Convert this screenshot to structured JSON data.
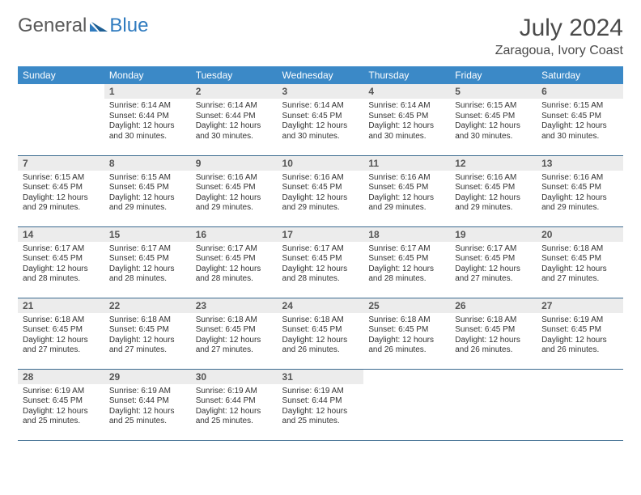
{
  "brand": {
    "general": "General",
    "blue": "Blue"
  },
  "header": {
    "title": "July 2024",
    "location": "Zaragoua, Ivory Coast"
  },
  "colors": {
    "header_bg": "#3b89c7",
    "header_text": "#ffffff",
    "daynum_bg": "#ececec",
    "row_border": "#3b6a8f",
    "brand_blue": "#2f7bbf",
    "brand_grey": "#5a5a5a"
  },
  "weekdays": [
    "Sunday",
    "Monday",
    "Tuesday",
    "Wednesday",
    "Thursday",
    "Friday",
    "Saturday"
  ],
  "grid": {
    "columns": 7,
    "start_offset": 1,
    "days": [
      {
        "n": 1,
        "sunrise": "6:14 AM",
        "sunset": "6:44 PM",
        "daylight": "12 hours and 30 minutes."
      },
      {
        "n": 2,
        "sunrise": "6:14 AM",
        "sunset": "6:44 PM",
        "daylight": "12 hours and 30 minutes."
      },
      {
        "n": 3,
        "sunrise": "6:14 AM",
        "sunset": "6:45 PM",
        "daylight": "12 hours and 30 minutes."
      },
      {
        "n": 4,
        "sunrise": "6:14 AM",
        "sunset": "6:45 PM",
        "daylight": "12 hours and 30 minutes."
      },
      {
        "n": 5,
        "sunrise": "6:15 AM",
        "sunset": "6:45 PM",
        "daylight": "12 hours and 30 minutes."
      },
      {
        "n": 6,
        "sunrise": "6:15 AM",
        "sunset": "6:45 PM",
        "daylight": "12 hours and 30 minutes."
      },
      {
        "n": 7,
        "sunrise": "6:15 AM",
        "sunset": "6:45 PM",
        "daylight": "12 hours and 29 minutes."
      },
      {
        "n": 8,
        "sunrise": "6:15 AM",
        "sunset": "6:45 PM",
        "daylight": "12 hours and 29 minutes."
      },
      {
        "n": 9,
        "sunrise": "6:16 AM",
        "sunset": "6:45 PM",
        "daylight": "12 hours and 29 minutes."
      },
      {
        "n": 10,
        "sunrise": "6:16 AM",
        "sunset": "6:45 PM",
        "daylight": "12 hours and 29 minutes."
      },
      {
        "n": 11,
        "sunrise": "6:16 AM",
        "sunset": "6:45 PM",
        "daylight": "12 hours and 29 minutes."
      },
      {
        "n": 12,
        "sunrise": "6:16 AM",
        "sunset": "6:45 PM",
        "daylight": "12 hours and 29 minutes."
      },
      {
        "n": 13,
        "sunrise": "6:16 AM",
        "sunset": "6:45 PM",
        "daylight": "12 hours and 29 minutes."
      },
      {
        "n": 14,
        "sunrise": "6:17 AM",
        "sunset": "6:45 PM",
        "daylight": "12 hours and 28 minutes."
      },
      {
        "n": 15,
        "sunrise": "6:17 AM",
        "sunset": "6:45 PM",
        "daylight": "12 hours and 28 minutes."
      },
      {
        "n": 16,
        "sunrise": "6:17 AM",
        "sunset": "6:45 PM",
        "daylight": "12 hours and 28 minutes."
      },
      {
        "n": 17,
        "sunrise": "6:17 AM",
        "sunset": "6:45 PM",
        "daylight": "12 hours and 28 minutes."
      },
      {
        "n": 18,
        "sunrise": "6:17 AM",
        "sunset": "6:45 PM",
        "daylight": "12 hours and 28 minutes."
      },
      {
        "n": 19,
        "sunrise": "6:17 AM",
        "sunset": "6:45 PM",
        "daylight": "12 hours and 27 minutes."
      },
      {
        "n": 20,
        "sunrise": "6:18 AM",
        "sunset": "6:45 PM",
        "daylight": "12 hours and 27 minutes."
      },
      {
        "n": 21,
        "sunrise": "6:18 AM",
        "sunset": "6:45 PM",
        "daylight": "12 hours and 27 minutes."
      },
      {
        "n": 22,
        "sunrise": "6:18 AM",
        "sunset": "6:45 PM",
        "daylight": "12 hours and 27 minutes."
      },
      {
        "n": 23,
        "sunrise": "6:18 AM",
        "sunset": "6:45 PM",
        "daylight": "12 hours and 27 minutes."
      },
      {
        "n": 24,
        "sunrise": "6:18 AM",
        "sunset": "6:45 PM",
        "daylight": "12 hours and 26 minutes."
      },
      {
        "n": 25,
        "sunrise": "6:18 AM",
        "sunset": "6:45 PM",
        "daylight": "12 hours and 26 minutes."
      },
      {
        "n": 26,
        "sunrise": "6:18 AM",
        "sunset": "6:45 PM",
        "daylight": "12 hours and 26 minutes."
      },
      {
        "n": 27,
        "sunrise": "6:19 AM",
        "sunset": "6:45 PM",
        "daylight": "12 hours and 26 minutes."
      },
      {
        "n": 28,
        "sunrise": "6:19 AM",
        "sunset": "6:45 PM",
        "daylight": "12 hours and 25 minutes."
      },
      {
        "n": 29,
        "sunrise": "6:19 AM",
        "sunset": "6:44 PM",
        "daylight": "12 hours and 25 minutes."
      },
      {
        "n": 30,
        "sunrise": "6:19 AM",
        "sunset": "6:44 PM",
        "daylight": "12 hours and 25 minutes."
      },
      {
        "n": 31,
        "sunrise": "6:19 AM",
        "sunset": "6:44 PM",
        "daylight": "12 hours and 25 minutes."
      }
    ]
  },
  "labels": {
    "sunrise": "Sunrise:",
    "sunset": "Sunset:",
    "daylight": "Daylight:"
  }
}
